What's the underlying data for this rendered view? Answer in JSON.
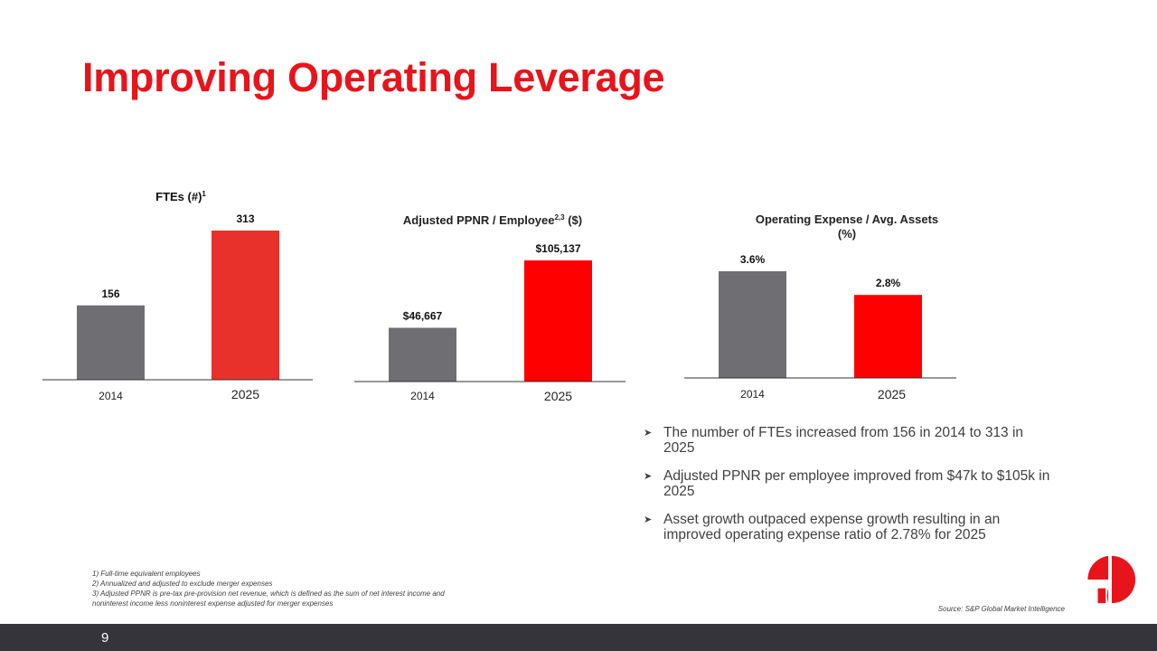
{
  "slide": {
    "title": "Improving Operating Leverage",
    "page_number": "9"
  },
  "colors": {
    "title_red": "#e8141b",
    "bar_gray": "#6f6e73",
    "bar_red_1": "#e8312a",
    "bar_red": "#fe0000",
    "footer": "#34343a"
  },
  "chart_data": [
    {
      "type": "bar",
      "title": "FTEs (#)",
      "title_sup": "1",
      "categories": [
        "2014",
        "2025"
      ],
      "values": [
        156,
        313
      ],
      "value_labels": [
        "156",
        "313"
      ],
      "ylim": [
        0,
        313
      ]
    },
    {
      "type": "bar",
      "title": "Adjusted PPNR / Employee",
      "title_sup": "2,3",
      "title_suffix": " ($)",
      "categories": [
        "2014",
        "2025"
      ],
      "values": [
        46667,
        105137
      ],
      "value_labels": [
        "$46,667",
        "$105,137"
      ],
      "ylim": [
        0,
        105137
      ]
    },
    {
      "type": "bar",
      "title_lines": [
        "Operating Expense / Avg. Assets",
        "(%)"
      ],
      "categories": [
        "2014",
        "2025"
      ],
      "values": [
        3.6,
        2.8
      ],
      "value_labels": [
        "3.6%",
        "2.8%"
      ],
      "ylim": [
        0,
        3.6
      ]
    }
  ],
  "bullets": [
    "The number of FTEs increased from 156 in 2014 to 313 in 2025",
    "Adjusted PPNR per employee improved from $47k to $105k in 2025",
    "Asset growth outpaced expense growth resulting in an improved operating expense ratio of 2.78% for 2025"
  ],
  "footnotes": [
    "1) Full-time equivalent employees",
    "2) Annualized and adjusted to exclude merger expenses",
    "3) Adjusted PPNR is pre-tax pre-provision net revenue, which is defined as the sum of net interest income and",
    "noninterest income less noninterest expense adjusted for merger expenses"
  ],
  "source": "Source: S&P Global Market Intelligence",
  "logo": {
    "icon": "numeral-one-logo-icon"
  }
}
